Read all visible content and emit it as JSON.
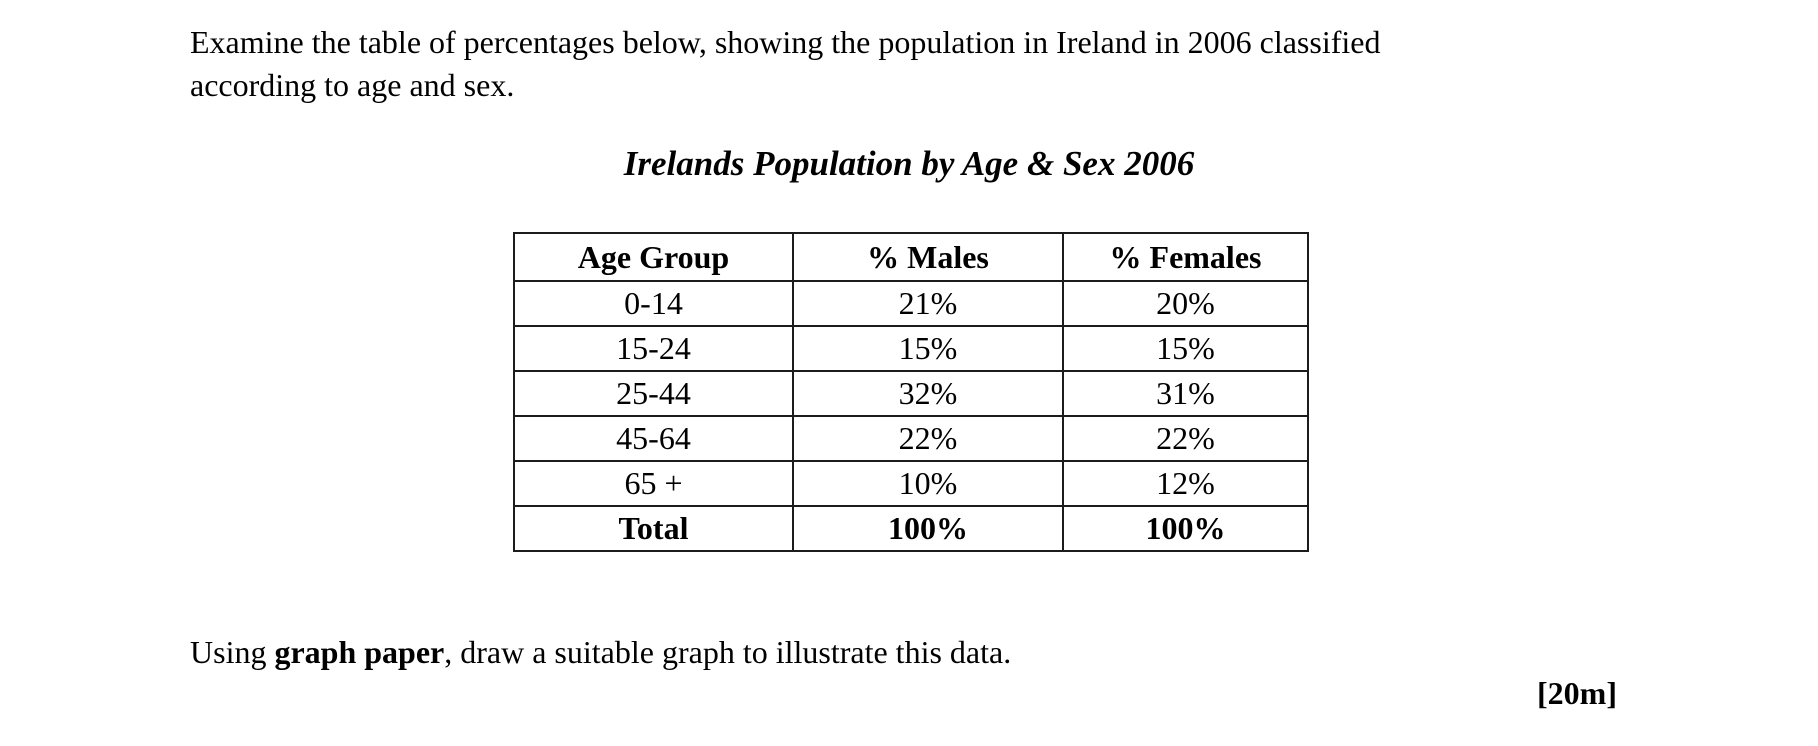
{
  "page": {
    "background": "#ffffff",
    "text_color": "#000000",
    "table_border_color": "#1c1c1c"
  },
  "intro": {
    "lines": [
      "Examine the table of percentages below, showing the population in Ireland in 2006 classified",
      "according to age and sex."
    ]
  },
  "table": {
    "title": "Irelands Population by Age & Sex 2006",
    "headers": [
      "Age Group",
      "% Males",
      "% Females"
    ],
    "rows": [
      [
        "0-14",
        "21%",
        "20%"
      ],
      [
        "15-24",
        "15%",
        "15%"
      ],
      [
        "25-44",
        "32%",
        "31%"
      ],
      [
        "45-64",
        "22%",
        "22%"
      ],
      [
        "65 +",
        "10%",
        "12%"
      ],
      [
        "Total",
        "100%",
        "100%"
      ]
    ]
  },
  "instruction": {
    "prefix": "Using ",
    "bold": "graph paper",
    "suffix": ", draw a suitable graph to illustrate this data."
  },
  "marks": "[20m]"
}
